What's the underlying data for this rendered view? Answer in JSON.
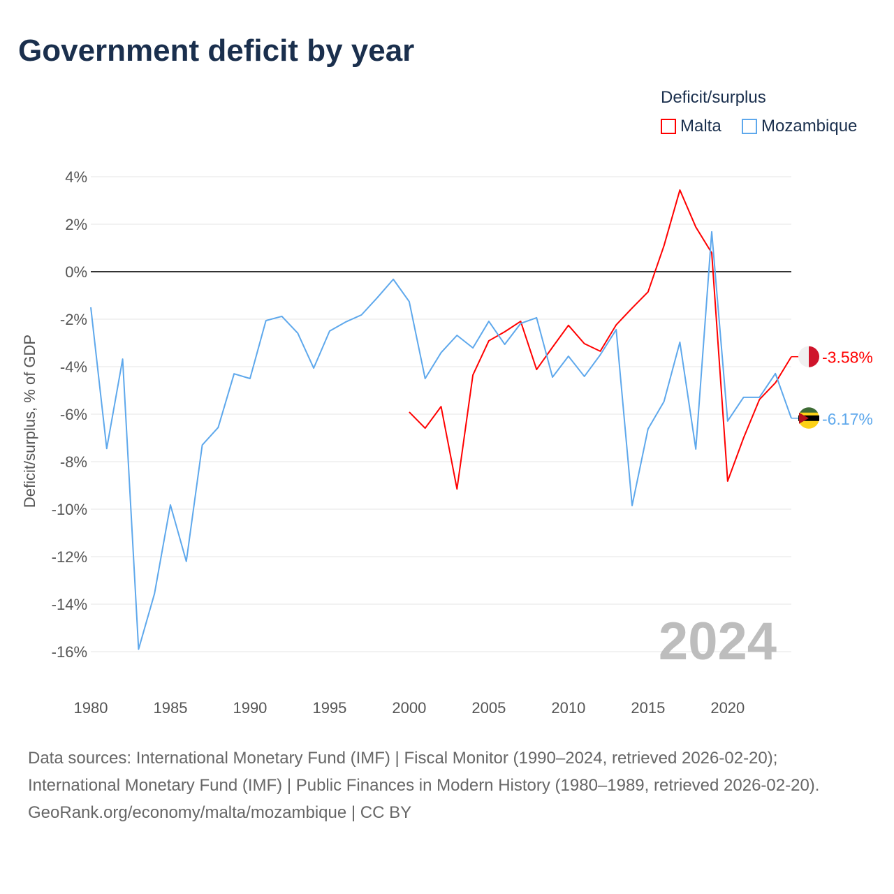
{
  "title": "Government deficit by year",
  "legend": {
    "title": "Deficit/surplus",
    "items": [
      {
        "name": "Malta",
        "color": "#ff0000"
      },
      {
        "name": "Mozambique",
        "color": "#5ea8ec"
      }
    ]
  },
  "footer": {
    "sources": "Data sources: International Monetary Fund (IMF) | Fiscal Monitor (1990–2024, retrieved 2026-02-20); International Monetary Fund (IMF) | Public Finances in Modern History (1980–1989, retrieved 2026-02-20).",
    "credit": "GeoRank.org/economy/malta/mozambique | CC BY"
  },
  "chart_data": {
    "type": "line",
    "title": "Government deficit by year",
    "ylabel": "Deficit/surplus, % of GDP",
    "xlabel": "",
    "xlim": [
      1980,
      2024
    ],
    "ylim": [
      -16,
      4
    ],
    "x_ticks": [
      "1980",
      "1985",
      "1990",
      "1995",
      "2000",
      "2005",
      "2010",
      "2015",
      "2020"
    ],
    "y_ticks": [
      "4%",
      "2%",
      "0%",
      "-2%",
      "-4%",
      "-6%",
      "-8%",
      "-10%",
      "-12%",
      "-14%",
      "-16%"
    ],
    "year_watermark": "2024",
    "series": [
      {
        "name": "Malta",
        "color": "#ff0000",
        "end_label": "-3.58%",
        "x": [
          2000,
          2001,
          2002,
          2003,
          2004,
          2005,
          2006,
          2007,
          2008,
          2009,
          2010,
          2011,
          2012,
          2013,
          2014,
          2015,
          2016,
          2017,
          2018,
          2019,
          2020,
          2021,
          2022,
          2023,
          2024
        ],
        "values": [
          -5.91,
          -6.59,
          -5.68,
          -9.15,
          -4.35,
          -2.91,
          -2.53,
          -2.09,
          -4.12,
          -3.18,
          -2.26,
          -3.03,
          -3.35,
          -2.24,
          -1.53,
          -0.85,
          1.09,
          3.44,
          1.88,
          0.79,
          -8.82,
          -7.0,
          -5.38,
          -4.68,
          -3.58
        ]
      },
      {
        "name": "Mozambique",
        "color": "#5ea8ec",
        "end_label": "-6.17%",
        "x": [
          1980,
          1981,
          1982,
          1983,
          1984,
          1985,
          1986,
          1987,
          1988,
          1989,
          1990,
          1991,
          1992,
          1993,
          1994,
          1995,
          1996,
          1997,
          1998,
          1999,
          2000,
          2001,
          2002,
          2003,
          2004,
          2005,
          2006,
          2007,
          2008,
          2009,
          2010,
          2011,
          2012,
          2013,
          2014,
          2015,
          2016,
          2017,
          2018,
          2019,
          2020,
          2021,
          2022,
          2023,
          2024
        ],
        "values": [
          -1.5,
          -7.45,
          -3.68,
          -15.9,
          -13.56,
          -9.82,
          -12.2,
          -7.3,
          -6.56,
          -4.3,
          -4.5,
          -2.06,
          -1.88,
          -2.59,
          -4.06,
          -2.5,
          -2.12,
          -1.82,
          -1.09,
          -0.32,
          -1.26,
          -4.5,
          -3.41,
          -2.68,
          -3.21,
          -2.09,
          -3.06,
          -2.18,
          -1.94,
          -4.44,
          -3.56,
          -4.41,
          -3.5,
          -2.44,
          -9.85,
          -6.62,
          -5.47,
          -2.97,
          -7.47,
          1.68,
          -6.29,
          -5.29,
          -5.29,
          -4.29,
          -6.17
        ]
      }
    ]
  }
}
